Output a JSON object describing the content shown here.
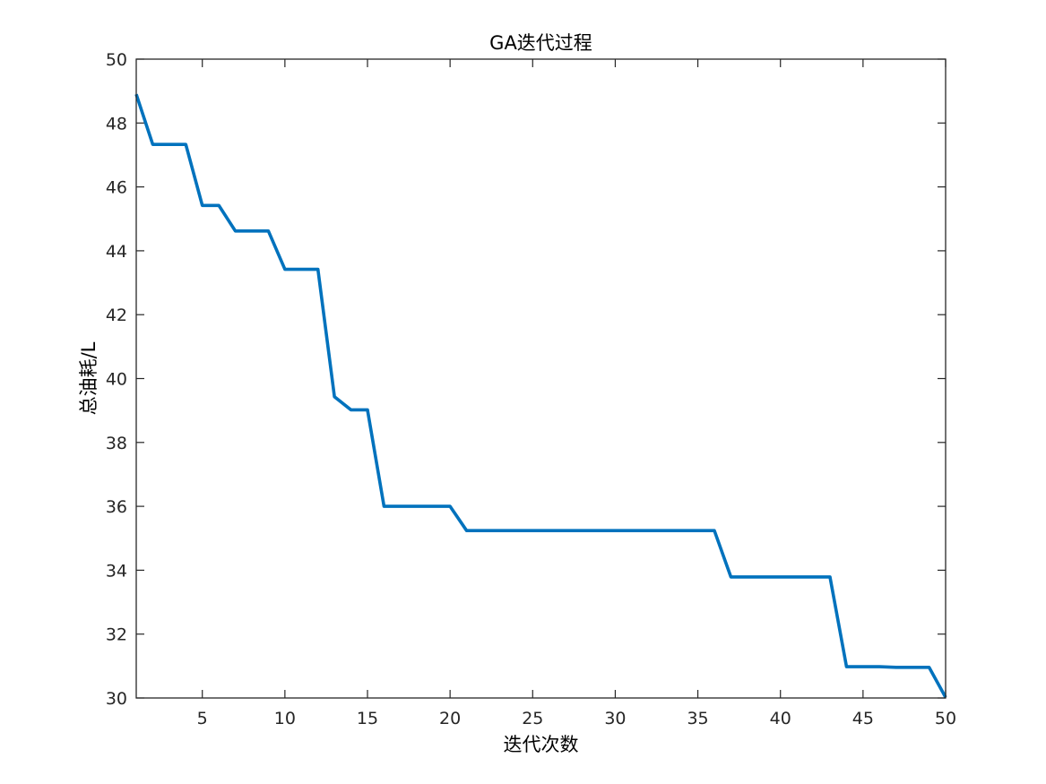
{
  "chart_data": {
    "type": "line",
    "title": "GA迭代过程",
    "xlabel": "迭代次数",
    "ylabel": "总油耗/L",
    "xlim": [
      1,
      50
    ],
    "ylim": [
      30,
      50
    ],
    "xticks": [
      5,
      10,
      15,
      20,
      25,
      30,
      35,
      40,
      45,
      50
    ],
    "yticks": [
      30,
      32,
      34,
      36,
      38,
      40,
      42,
      44,
      46,
      48,
      50
    ],
    "grid": false,
    "box": true,
    "series": [
      {
        "color": "#0072BD",
        "x": [
          1,
          2,
          3,
          4,
          5,
          6,
          7,
          8,
          9,
          10,
          11,
          12,
          13,
          14,
          15,
          16,
          17,
          18,
          19,
          20,
          21,
          22,
          23,
          24,
          25,
          26,
          27,
          28,
          29,
          30,
          31,
          32,
          33,
          34,
          35,
          36,
          37,
          38,
          39,
          40,
          41,
          42,
          43,
          44,
          45,
          46,
          47,
          48,
          49,
          50
        ],
        "y": [
          48.9,
          47.33,
          47.33,
          47.33,
          45.42,
          45.42,
          44.62,
          44.62,
          44.62,
          43.42,
          43.42,
          43.42,
          39.43,
          39.02,
          39.02,
          36.0,
          36.0,
          36.0,
          36.0,
          36.0,
          35.24,
          35.24,
          35.24,
          35.24,
          35.24,
          35.24,
          35.24,
          35.24,
          35.24,
          35.24,
          35.24,
          35.24,
          35.24,
          35.24,
          35.24,
          35.24,
          33.79,
          33.79,
          33.79,
          33.79,
          33.79,
          33.79,
          33.79,
          30.98,
          30.98,
          30.98,
          30.96,
          30.96,
          30.96,
          30.02
        ]
      }
    ]
  }
}
